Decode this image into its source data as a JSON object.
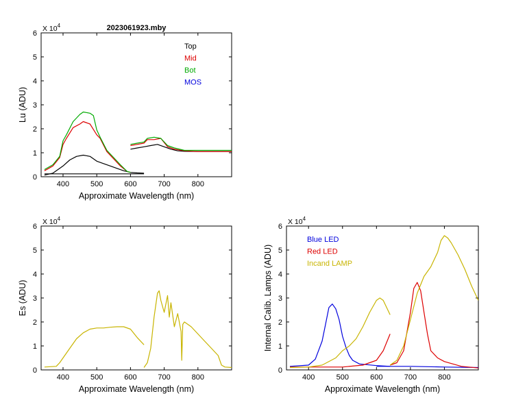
{
  "chart_data": [
    {
      "id": "lu",
      "type": "line",
      "title": "2023061923.mby",
      "xlabel": "Approximate Wavelength (nm)",
      "ylabel": "Lu (ADU)",
      "y_multiplier": "X 10^4",
      "xlim": [
        335,
        900
      ],
      "ylim": [
        0,
        6
      ],
      "xticks": [
        400,
        500,
        600,
        700,
        800
      ],
      "yticks": [
        0,
        1,
        2,
        3,
        4,
        5,
        6
      ],
      "legend_position": "top-right",
      "series": [
        {
          "name": "Top",
          "color": "#000000",
          "segments": [
            {
              "x": [
                345,
                370,
                390,
                400,
                420,
                440,
                460,
                480,
                500,
                520,
                540,
                560,
                580,
                600,
                620,
                640
              ],
              "y": [
                0.07,
                0.15,
                0.35,
                0.45,
                0.7,
                0.85,
                0.9,
                0.85,
                0.65,
                0.55,
                0.45,
                0.35,
                0.25,
                0.18,
                0.16,
                0.15
              ]
            },
            {
              "x": [
                345,
                640
              ],
              "y": [
                0.12,
                0.12
              ]
            },
            {
              "x": [
                600,
                620,
                640,
                660,
                680,
                700,
                720,
                740,
                760,
                800,
                900
              ],
              "y": [
                1.15,
                1.2,
                1.25,
                1.3,
                1.35,
                1.25,
                1.15,
                1.08,
                1.06,
                1.05,
                1.05
              ]
            }
          ]
        },
        {
          "name": "Mid",
          "color": "#dd0000",
          "segments": [
            {
              "x": [
                345,
                370,
                390,
                400,
                410,
                430,
                450,
                460,
                480,
                500,
                510,
                530,
                550,
                570,
                590,
                600
              ],
              "y": [
                0.25,
                0.45,
                0.8,
                1.35,
                1.6,
                2.05,
                2.2,
                2.3,
                2.2,
                1.75,
                1.6,
                1.05,
                0.75,
                0.45,
                0.22,
                0.18
              ]
            },
            {
              "x": [
                600,
                620,
                640,
                650,
                670,
                690,
                710,
                730,
                760,
                800,
                900
              ],
              "y": [
                1.3,
                1.35,
                1.4,
                1.55,
                1.55,
                1.6,
                1.25,
                1.15,
                1.08,
                1.05,
                1.05
              ]
            }
          ]
        },
        {
          "name": "Bot",
          "color": "#00aa00",
          "segments": [
            {
              "x": [
                345,
                370,
                390,
                400,
                410,
                430,
                450,
                460,
                480,
                490,
                500,
                510,
                530,
                550,
                570,
                590,
                600
              ],
              "y": [
                0.3,
                0.5,
                0.85,
                1.5,
                1.75,
                2.3,
                2.6,
                2.7,
                2.65,
                2.55,
                1.95,
                1.65,
                1.1,
                0.8,
                0.5,
                0.22,
                0.18
              ]
            },
            {
              "x": [
                600,
                620,
                640,
                650,
                670,
                690,
                710,
                730,
                760,
                800,
                900
              ],
              "y": [
                1.35,
                1.4,
                1.45,
                1.6,
                1.65,
                1.6,
                1.3,
                1.2,
                1.1,
                1.1,
                1.1
              ]
            }
          ]
        }
      ],
      "legend": [
        {
          "label": "Top",
          "color": "#000000"
        },
        {
          "label": "Mid",
          "color": "#dd0000"
        },
        {
          "label": "Bot",
          "color": "#00aa00"
        },
        {
          "label": "MOS",
          "color": "#0000dd"
        }
      ]
    },
    {
      "id": "es",
      "type": "line",
      "title": "",
      "xlabel": "Approximate Wavelength (nm)",
      "ylabel": "Es  (ADU)",
      "y_multiplier": "X 10^4",
      "xlim": [
        335,
        900
      ],
      "ylim": [
        0,
        6
      ],
      "xticks": [
        400,
        500,
        600,
        700,
        800
      ],
      "yticks": [
        0,
        1,
        2,
        3,
        4,
        5,
        6
      ],
      "series": [
        {
          "name": "Es",
          "color": "#c8b400",
          "segments": [
            {
              "x": [
                345,
                380,
                390,
                400,
                420,
                440,
                460,
                480,
                500,
                520,
                540,
                560,
                580,
                600,
                620,
                640
              ],
              "y": [
                0.12,
                0.15,
                0.3,
                0.5,
                0.9,
                1.3,
                1.55,
                1.7,
                1.75,
                1.75,
                1.78,
                1.8,
                1.8,
                1.7,
                1.35,
                1.05
              ]
            },
            {
              "x": [
                640,
                650,
                660,
                670,
                680,
                685,
                690,
                700,
                710,
                715,
                720,
                730,
                740,
                750,
                752,
                755,
                760,
                780,
                800,
                820,
                840,
                860,
                870,
                880,
                900
              ],
              "y": [
                0.1,
                0.3,
                0.9,
                2.2,
                3.2,
                3.3,
                2.9,
                2.4,
                3.1,
                2.2,
                2.8,
                1.8,
                2.35,
                1.6,
                0.4,
                1.9,
                2.0,
                1.8,
                1.5,
                1.2,
                0.9,
                0.6,
                0.2,
                0.12,
                0.1
              ]
            }
          ]
        }
      ]
    },
    {
      "id": "lamps",
      "type": "line",
      "title": "",
      "xlabel": "Approximate Wavelength (nm)",
      "ylabel": "Internal Calib. Lamps  (ADU)",
      "y_multiplier": "X 10^4",
      "xlim": [
        335,
        900
      ],
      "ylim": [
        0,
        6
      ],
      "xticks": [
        400,
        500,
        600,
        700,
        800
      ],
      "yticks": [
        0,
        1,
        2,
        3,
        4,
        5,
        6
      ],
      "legend_position": "top-left",
      "series": [
        {
          "name": "Blue LED",
          "color": "#0000dd",
          "segments": [
            {
              "x": [
                345,
                400,
                420,
                440,
                450,
                460,
                470,
                480,
                490,
                500,
                510,
                520,
                530,
                550,
                600,
                640
              ],
              "y": [
                0.15,
                0.2,
                0.45,
                1.2,
                1.9,
                2.6,
                2.75,
                2.55,
                2.1,
                1.4,
                0.95,
                0.6,
                0.4,
                0.25,
                0.18,
                0.15
              ]
            },
            {
              "x": [
                600,
                700,
                800,
                900
              ],
              "y": [
                0.15,
                0.15,
                0.12,
                0.1
              ]
            }
          ]
        },
        {
          "name": "Red LED",
          "color": "#dd0000",
          "segments": [
            {
              "x": [
                345,
                500,
                560,
                600,
                620,
                640
              ],
              "y": [
                0.12,
                0.12,
                0.2,
                0.4,
                0.8,
                1.5
              ]
            },
            {
              "x": [
                640,
                660,
                680,
                700,
                710,
                720,
                730,
                740,
                750,
                760,
                780,
                800,
                850,
                900
              ],
              "y": [
                0.2,
                0.3,
                0.8,
                2.4,
                3.4,
                3.65,
                3.3,
                2.4,
                1.5,
                0.8,
                0.5,
                0.35,
                0.15,
                0.08
              ]
            }
          ]
        },
        {
          "name": "Incand LAMP",
          "color": "#c8b400",
          "segments": [
            {
              "x": [
                345,
                400,
                440,
                480,
                500,
                520,
                540,
                560,
                580,
                600,
                610,
                620,
                630,
                640
              ],
              "y": [
                0.1,
                0.12,
                0.2,
                0.5,
                0.8,
                1.0,
                1.3,
                1.8,
                2.4,
                2.9,
                3.0,
                2.9,
                2.6,
                2.3
              ]
            },
            {
              "x": [
                640,
                660,
                680,
                700,
                720,
                740,
                760,
                780,
                790,
                800,
                810,
                820,
                840,
                860,
                880,
                900
              ],
              "y": [
                0.2,
                0.4,
                1.0,
                2.1,
                3.2,
                3.9,
                4.3,
                4.9,
                5.4,
                5.6,
                5.5,
                5.3,
                4.8,
                4.2,
                3.5,
                2.9
              ]
            }
          ]
        }
      ],
      "legend": [
        {
          "label": "Blue LED",
          "color": "#0000dd"
        },
        {
          "label": "Red LED",
          "color": "#dd0000"
        },
        {
          "label": "Incand LAMP",
          "color": "#c8b400"
        }
      ]
    }
  ]
}
